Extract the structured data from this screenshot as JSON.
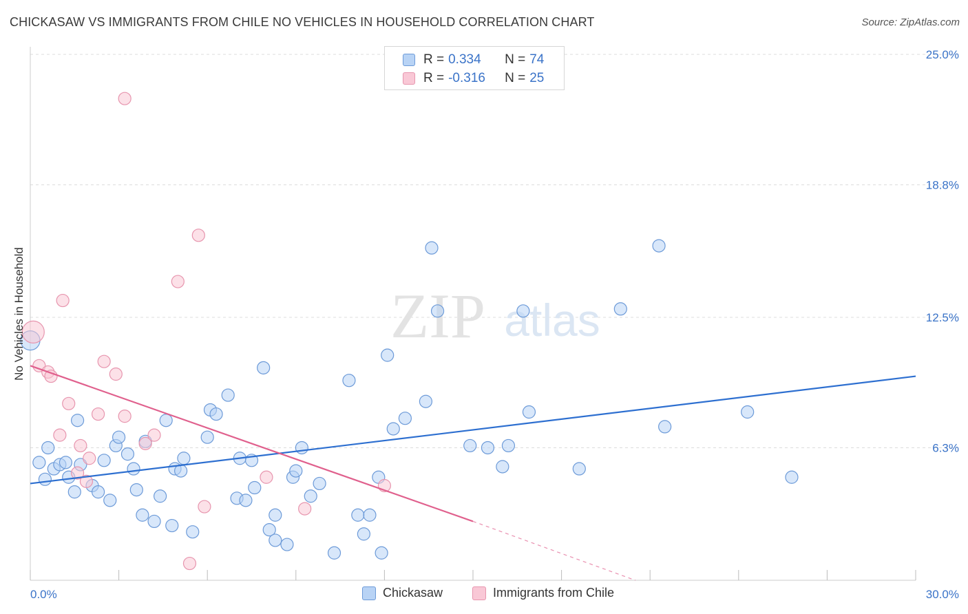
{
  "header": {
    "title": "CHICKASAW VS IMMIGRANTS FROM CHILE NO VEHICLES IN HOUSEHOLD CORRELATION CHART",
    "source": "Source: ZipAtlas.com"
  },
  "watermark": {
    "zip": "ZIP",
    "atlas": "atlas"
  },
  "colors": {
    "blue_fill": "#b8d3f5",
    "blue_stroke": "#6c9ad8",
    "blue_line": "#2d6fd0",
    "pink_fill": "#f9c8d6",
    "pink_stroke": "#e795ae",
    "pink_line": "#e0608d",
    "axis_text": "#3a73c8",
    "grid": "#dcdcdc"
  },
  "legend_top": {
    "rows": [
      {
        "r_label": "R =",
        "r_value": "0.334",
        "n_label": "N =",
        "n_value": "74"
      },
      {
        "r_label": "R =",
        "r_value": "-0.316",
        "n_label": "N =",
        "n_value": "25"
      }
    ]
  },
  "bottom_legend": {
    "series1": "Chickasaw",
    "series2": "Immigrants from Chile"
  },
  "chart_data": {
    "type": "scatter",
    "title": "CHICKASAW VS IMMIGRANTS FROM CHILE NO VEHICLES IN HOUSEHOLD CORRELATION CHART",
    "xlabel": "",
    "ylabel": "No Vehicles in Household",
    "xlim": [
      0,
      30
    ],
    "ylim": [
      0,
      25.0
    ],
    "x_tick_labels": [
      "0.0%",
      "30.0%"
    ],
    "y_ticks": [
      6.3,
      12.5,
      18.8,
      25.0
    ],
    "y_tick_labels": [
      "6.3%",
      "12.5%",
      "18.8%",
      "25.0%"
    ],
    "grid": "horizontal dashed",
    "legend": "top-center",
    "series": [
      {
        "name": "Chickasaw",
        "R": 0.334,
        "N": 74,
        "trend": {
          "x": [
            0,
            30
          ],
          "y": [
            4.6,
            9.7
          ]
        },
        "points": [
          [
            0.0,
            11.4
          ],
          [
            0.3,
            5.6
          ],
          [
            0.5,
            4.8
          ],
          [
            0.6,
            6.3
          ],
          [
            0.8,
            5.3
          ],
          [
            1.0,
            5.5
          ],
          [
            1.2,
            5.6
          ],
          [
            1.3,
            4.9
          ],
          [
            1.5,
            4.2
          ],
          [
            1.6,
            7.6
          ],
          [
            1.7,
            5.5
          ],
          [
            2.1,
            4.5
          ],
          [
            2.3,
            4.2
          ],
          [
            2.5,
            5.7
          ],
          [
            2.7,
            3.8
          ],
          [
            2.9,
            6.4
          ],
          [
            3.0,
            6.8
          ],
          [
            3.3,
            6.0
          ],
          [
            3.5,
            5.3
          ],
          [
            3.6,
            4.3
          ],
          [
            3.8,
            3.1
          ],
          [
            3.9,
            6.6
          ],
          [
            4.2,
            2.8
          ],
          [
            4.4,
            4.0
          ],
          [
            4.6,
            7.6
          ],
          [
            4.8,
            2.6
          ],
          [
            4.9,
            5.3
          ],
          [
            5.1,
            5.2
          ],
          [
            5.2,
            5.8
          ],
          [
            5.5,
            2.3
          ],
          [
            6.0,
            6.8
          ],
          [
            6.1,
            8.1
          ],
          [
            6.3,
            7.9
          ],
          [
            6.7,
            8.8
          ],
          [
            7.0,
            3.9
          ],
          [
            7.1,
            5.8
          ],
          [
            7.3,
            3.8
          ],
          [
            7.5,
            5.7
          ],
          [
            7.6,
            4.4
          ],
          [
            7.9,
            10.1
          ],
          [
            8.1,
            2.4
          ],
          [
            8.3,
            1.9
          ],
          [
            8.3,
            3.1
          ],
          [
            8.7,
            1.7
          ],
          [
            8.9,
            4.9
          ],
          [
            9.0,
            5.2
          ],
          [
            9.2,
            6.3
          ],
          [
            9.5,
            4.0
          ],
          [
            9.8,
            4.6
          ],
          [
            10.3,
            1.3
          ],
          [
            10.8,
            9.5
          ],
          [
            11.1,
            3.1
          ],
          [
            11.3,
            2.2
          ],
          [
            11.5,
            3.1
          ],
          [
            11.8,
            4.9
          ],
          [
            11.9,
            1.3
          ],
          [
            12.1,
            10.7
          ],
          [
            12.3,
            7.2
          ],
          [
            12.7,
            7.7
          ],
          [
            13.4,
            8.5
          ],
          [
            13.6,
            15.8
          ],
          [
            13.8,
            12.8
          ],
          [
            14.9,
            6.4
          ],
          [
            15.5,
            6.3
          ],
          [
            16.0,
            5.4
          ],
          [
            16.2,
            6.4
          ],
          [
            16.7,
            12.8
          ],
          [
            16.9,
            8.0
          ],
          [
            18.6,
            5.3
          ],
          [
            20.0,
            12.9
          ],
          [
            21.3,
            15.9
          ],
          [
            21.5,
            7.3
          ],
          [
            24.3,
            8.0
          ],
          [
            25.8,
            4.9
          ]
        ]
      },
      {
        "name": "Immigrants from Chile",
        "R": -0.316,
        "N": 25,
        "trend": {
          "x": [
            0,
            15
          ],
          "y": [
            10.2,
            2.8
          ]
        },
        "trend_dashed": {
          "x": [
            15,
            20.5
          ],
          "y": [
            2.8,
            0
          ]
        },
        "points": [
          [
            0.1,
            11.8
          ],
          [
            0.3,
            10.2
          ],
          [
            0.6,
            9.9
          ],
          [
            0.7,
            9.7
          ],
          [
            1.0,
            6.9
          ],
          [
            1.1,
            13.3
          ],
          [
            1.3,
            8.4
          ],
          [
            1.6,
            5.1
          ],
          [
            1.7,
            6.4
          ],
          [
            1.9,
            4.7
          ],
          [
            2.0,
            5.8
          ],
          [
            2.3,
            7.9
          ],
          [
            2.5,
            10.4
          ],
          [
            2.9,
            9.8
          ],
          [
            3.2,
            22.9
          ],
          [
            3.2,
            7.8
          ],
          [
            3.9,
            6.5
          ],
          [
            4.2,
            6.9
          ],
          [
            5.0,
            14.2
          ],
          [
            5.4,
            0.8
          ],
          [
            5.7,
            16.4
          ],
          [
            5.9,
            3.5
          ],
          [
            8.0,
            4.9
          ],
          [
            9.3,
            3.4
          ],
          [
            12.0,
            4.5
          ]
        ]
      }
    ]
  }
}
